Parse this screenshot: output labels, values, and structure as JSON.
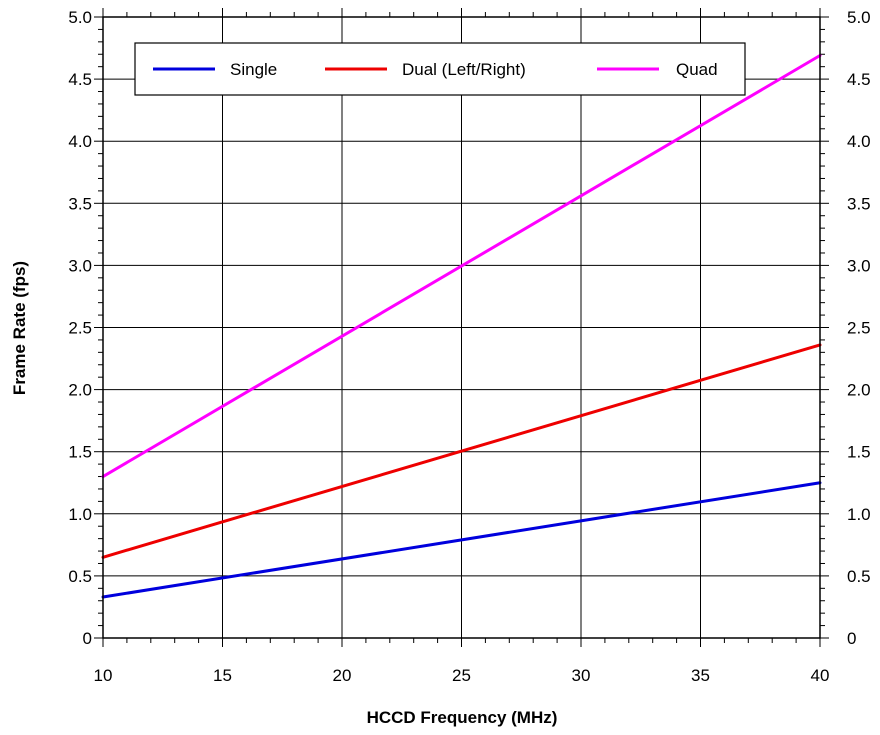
{
  "chart_data": {
    "type": "line",
    "xlabel": "HCCD Frequency (MHz)",
    "ylabel": "Frame Rate (fps)",
    "xlim": [
      10,
      40
    ],
    "ylim": [
      0,
      5.0
    ],
    "x_ticks": [
      "10",
      "15",
      "20",
      "25",
      "30",
      "35",
      "40"
    ],
    "y_ticks": [
      "0",
      "0.5",
      "1.0",
      "1.5",
      "2.0",
      "2.5",
      "3.0",
      "3.5",
      "4.0",
      "4.5",
      "5.0"
    ],
    "grid": true,
    "legend_position": "top",
    "series": [
      {
        "name": "Single",
        "color": "#0000dd",
        "x": [
          10,
          40
        ],
        "y": [
          0.33,
          1.25
        ]
      },
      {
        "name": "Dual (Left/Right)",
        "color": "#ee0000",
        "x": [
          10,
          40
        ],
        "y": [
          0.65,
          2.36
        ]
      },
      {
        "name": "Quad",
        "color": "#ff00ff",
        "x": [
          10,
          40
        ],
        "y": [
          1.3,
          4.69
        ]
      }
    ]
  }
}
